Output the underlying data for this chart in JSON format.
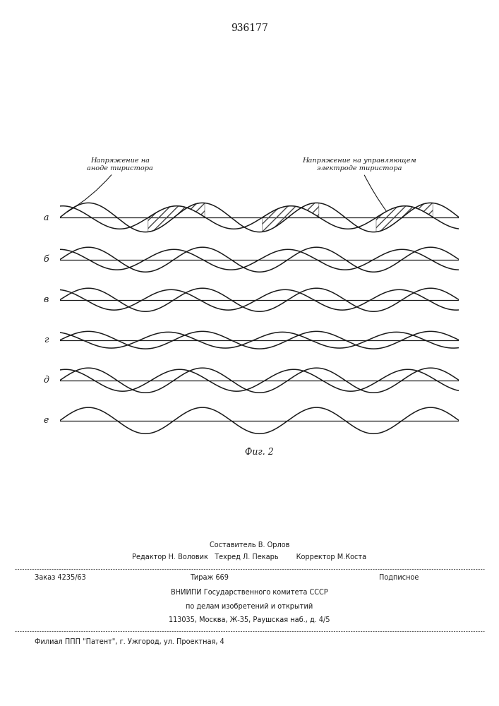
{
  "title_number": "936177",
  "fig_label": "Фиг. 2",
  "label_left_line1": "Напряжение на",
  "label_left_line2": "аноде тиристора",
  "label_right_line1": "Напряжение на управляющем",
  "label_right_line2": "электроде тиристора",
  "row_labels": [
    "а",
    "б",
    "в",
    "г",
    "д",
    "е"
  ],
  "background_color": "#ffffff",
  "line_color": "#1a1a1a",
  "hatch_color": "#444444",
  "footer_comp": "Составитель В. Орлов",
  "footer_editors": "Редактор Н. Воловик   Техред Л. Пекарь        Корректор М.Коста",
  "footer_order": "Заказ 4235/63",
  "footer_tirazh": "Тираж 669",
  "footer_podp": "Подписное",
  "footer_vniip": "ВНИИПИ Государственного комитета СССР",
  "footer_delo": "по делам изобретений и открытий",
  "footer_addr": "113035, Москва, Ж-35, Раушская наб., д. 4/5",
  "footer_filial": "Филиал ППП \"Патент\", г. Ужгород, ул. Проектная, 4"
}
